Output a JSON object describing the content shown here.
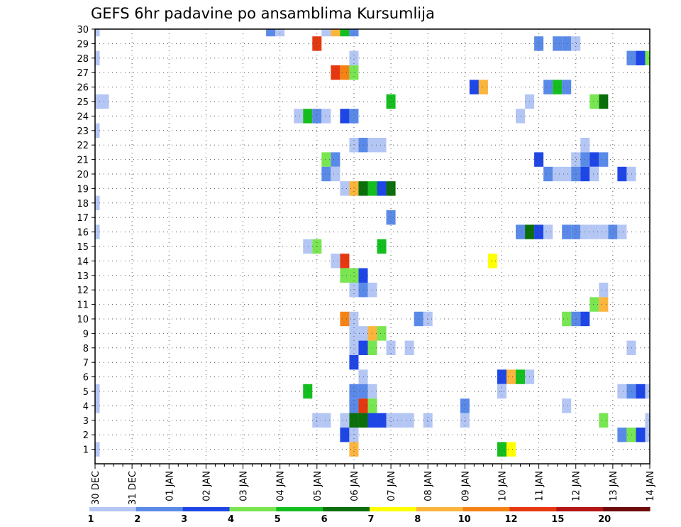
{
  "chart_data": {
    "type": "heatmap",
    "title": "GEFS 6hr padavine po ansamblima Kursumlija",
    "xlabel": "",
    "ylabel": "",
    "x_tick_labels": [
      "30 DEC",
      "31 DEC",
      "01 JAN",
      "02 JAN",
      "03 JAN",
      "04 JAN",
      "05 JAN",
      "06 JAN",
      "07 JAN",
      "08 JAN",
      "09 JAN",
      "10 JAN",
      "11 JAN",
      "12 JAN",
      "13 JAN",
      "14 JAN"
    ],
    "y_tick_labels": [
      "1",
      "2",
      "3",
      "4",
      "5",
      "6",
      "7",
      "8",
      "9",
      "10",
      "11",
      "12",
      "13",
      "14",
      "15",
      "16",
      "17",
      "18",
      "19",
      "20",
      "21",
      "22",
      "23",
      "24",
      "25",
      "26",
      "27",
      "28",
      "29",
      "30"
    ],
    "xlim": [
      0,
      60
    ],
    "ylim": [
      0,
      30
    ],
    "x_step_hours": 6,
    "grid": true,
    "legend_position": "bottom",
    "legend": {
      "labels": [
        "1",
        "2",
        "3",
        "4",
        "5",
        "6",
        "7",
        "8",
        "10",
        "12",
        "15",
        "20"
      ],
      "colors": [
        "#b4c6f4",
        "#5a8ae8",
        "#1e46e6",
        "#78e650",
        "#14be1e",
        "#0a6e0a",
        "#ffff00",
        "#fbb43c",
        "#f58214",
        "#e6370f",
        "#b41414",
        "#6e0a0a"
      ]
    },
    "level_colors": {
      "1": "#b4c6f4",
      "2": "#5a8ae8",
      "3": "#1e46e6",
      "4": "#78e650",
      "5": "#14be1e",
      "6": "#0a6e0a",
      "7": "#ffff00",
      "8": "#fbb43c",
      "10": "#f58214",
      "12": "#e6370f",
      "15": "#b41414",
      "20": "#6e0a0a"
    },
    "cells": [
      [
        0,
        30,
        1
      ],
      [
        19,
        30,
        2
      ],
      [
        20,
        30,
        1
      ],
      [
        25,
        30,
        1
      ],
      [
        26,
        30,
        8
      ],
      [
        27,
        30,
        5
      ],
      [
        28,
        30,
        2
      ],
      [
        24,
        29,
        12
      ],
      [
        48,
        29,
        2
      ],
      [
        50,
        29,
        2
      ],
      [
        51,
        29,
        2
      ],
      [
        52,
        29,
        1
      ],
      [
        0,
        28,
        1
      ],
      [
        28,
        28,
        1
      ],
      [
        58,
        28,
        2
      ],
      [
        59,
        28,
        3
      ],
      [
        60,
        28,
        4
      ],
      [
        26,
        27,
        12
      ],
      [
        27,
        27,
        10
      ],
      [
        28,
        27,
        4
      ],
      [
        41,
        26,
        3
      ],
      [
        42,
        26,
        8
      ],
      [
        49,
        26,
        2
      ],
      [
        50,
        26,
        5
      ],
      [
        51,
        26,
        2
      ],
      [
        0,
        25,
        1
      ],
      [
        1,
        25,
        1
      ],
      [
        32,
        25,
        5
      ],
      [
        47,
        25,
        1
      ],
      [
        54,
        25,
        4
      ],
      [
        55,
        25,
        6
      ],
      [
        22,
        24,
        1
      ],
      [
        23,
        24,
        5
      ],
      [
        24,
        24,
        2
      ],
      [
        25,
        24,
        1
      ],
      [
        27,
        24,
        3
      ],
      [
        28,
        24,
        2
      ],
      [
        46,
        24,
        1
      ],
      [
        0,
        23,
        1
      ],
      [
        28,
        22,
        1
      ],
      [
        29,
        22,
        2
      ],
      [
        30,
        22,
        1
      ],
      [
        31,
        22,
        1
      ],
      [
        53,
        22,
        1
      ],
      [
        25,
        21,
        4
      ],
      [
        26,
        21,
        2
      ],
      [
        48,
        21,
        3
      ],
      [
        52,
        21,
        1
      ],
      [
        53,
        21,
        2
      ],
      [
        54,
        21,
        3
      ],
      [
        55,
        21,
        2
      ],
      [
        25,
        20,
        2
      ],
      [
        26,
        20,
        1
      ],
      [
        49,
        20,
        2
      ],
      [
        50,
        20,
        1
      ],
      [
        51,
        20,
        1
      ],
      [
        52,
        20,
        2
      ],
      [
        53,
        20,
        3
      ],
      [
        54,
        20,
        1
      ],
      [
        57,
        20,
        3
      ],
      [
        58,
        20,
        1
      ],
      [
        27,
        19,
        1
      ],
      [
        28,
        19,
        8
      ],
      [
        29,
        19,
        6
      ],
      [
        30,
        19,
        5
      ],
      [
        31,
        19,
        3
      ],
      [
        32,
        19,
        6
      ],
      [
        0,
        18,
        1
      ],
      [
        32,
        17,
        2
      ],
      [
        0,
        16,
        1
      ],
      [
        46,
        16,
        2
      ],
      [
        47,
        16,
        6
      ],
      [
        48,
        16,
        3
      ],
      [
        49,
        16,
        1
      ],
      [
        51,
        16,
        2
      ],
      [
        52,
        16,
        2
      ],
      [
        53,
        16,
        1
      ],
      [
        54,
        16,
        1
      ],
      [
        55,
        16,
        1
      ],
      [
        56,
        16,
        2
      ],
      [
        57,
        16,
        1
      ],
      [
        23,
        15,
        1
      ],
      [
        24,
        15,
        4
      ],
      [
        31,
        15,
        5
      ],
      [
        26,
        14,
        1
      ],
      [
        27,
        14,
        12
      ],
      [
        43,
        14,
        7
      ],
      [
        27,
        13,
        4
      ],
      [
        28,
        13,
        4
      ],
      [
        29,
        13,
        3
      ],
      [
        28,
        12,
        1
      ],
      [
        29,
        12,
        2
      ],
      [
        30,
        12,
        1
      ],
      [
        55,
        12,
        1
      ],
      [
        54,
        11,
        4
      ],
      [
        55,
        11,
        8
      ],
      [
        27,
        10,
        10
      ],
      [
        28,
        10,
        1
      ],
      [
        35,
        10,
        2
      ],
      [
        36,
        10,
        1
      ],
      [
        51,
        10,
        4
      ],
      [
        52,
        10,
        2
      ],
      [
        53,
        10,
        3
      ],
      [
        28,
        9,
        1
      ],
      [
        29,
        9,
        1
      ],
      [
        30,
        9,
        8
      ],
      [
        31,
        9,
        4
      ],
      [
        28,
        8,
        1
      ],
      [
        29,
        8,
        3
      ],
      [
        30,
        8,
        4
      ],
      [
        32,
        8,
        1
      ],
      [
        34,
        8,
        1
      ],
      [
        58,
        8,
        1
      ],
      [
        28,
        7,
        3
      ],
      [
        29,
        6,
        1
      ],
      [
        44,
        6,
        3
      ],
      [
        45,
        6,
        8
      ],
      [
        46,
        6,
        5
      ],
      [
        47,
        6,
        1
      ],
      [
        0,
        5,
        1
      ],
      [
        23,
        5,
        5
      ],
      [
        28,
        5,
        2
      ],
      [
        29,
        5,
        2
      ],
      [
        30,
        5,
        1
      ],
      [
        44,
        5,
        1
      ],
      [
        57,
        5,
        1
      ],
      [
        58,
        5,
        2
      ],
      [
        59,
        5,
        3
      ],
      [
        60,
        5,
        1
      ],
      [
        0,
        4,
        1
      ],
      [
        28,
        4,
        2
      ],
      [
        29,
        4,
        12
      ],
      [
        30,
        4,
        4
      ],
      [
        40,
        4,
        2
      ],
      [
        51,
        4,
        1
      ],
      [
        24,
        3,
        1
      ],
      [
        25,
        3,
        1
      ],
      [
        27,
        3,
        1
      ],
      [
        28,
        3,
        6
      ],
      [
        29,
        3,
        6
      ],
      [
        30,
        3,
        3
      ],
      [
        31,
        3,
        3
      ],
      [
        32,
        3,
        1
      ],
      [
        33,
        3,
        1
      ],
      [
        34,
        3,
        1
      ],
      [
        36,
        3,
        1
      ],
      [
        40,
        3,
        1
      ],
      [
        55,
        3,
        4
      ],
      [
        60,
        3,
        1
      ],
      [
        27,
        2,
        3
      ],
      [
        28,
        2,
        1
      ],
      [
        57,
        2,
        2
      ],
      [
        58,
        2,
        4
      ],
      [
        59,
        2,
        3
      ],
      [
        60,
        2,
        1
      ],
      [
        0,
        1,
        1
      ],
      [
        28,
        1,
        8
      ],
      [
        44,
        1,
        5
      ],
      [
        45,
        1,
        7
      ]
    ]
  }
}
